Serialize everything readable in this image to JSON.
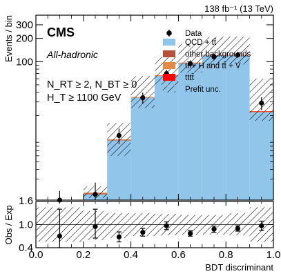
{
  "header": {
    "lumi": "138 fb⁻¹ (13 TeV)",
    "experiment": "CMS",
    "subtitle": "All-hadronic",
    "selection_line1": "N_RT ≥ 2, N_BT ≥ 0",
    "selection_line2": "H_T ≥ 1100 GeV"
  },
  "legend": {
    "data": "Data",
    "qcd": "QCD + tt̄",
    "other": "other backgrounds",
    "ttx": "tt̄ + H and tt̄ + V",
    "tttt": "tttt̄",
    "unc": "Prefit unc."
  },
  "colors": {
    "qcd": "#92c5ea",
    "other": "#b4523a",
    "ttx": "#e08b4a",
    "tttt": "#ff0000",
    "data": "#000000",
    "hatch": "#000000"
  },
  "chart_data": [
    {
      "type": "bar",
      "panel": "main",
      "stacked": true,
      "log_scale": true,
      "ylabel": "Events / bin",
      "ylim": [
        1.6,
        400
      ],
      "yticks": [
        100,
        200,
        300
      ],
      "ytick_labels": [
        "100",
        "200",
        "300"
      ],
      "ylim_label": "1.6",
      "bin_edges": [
        0.0,
        0.1,
        0.2,
        0.3,
        0.4,
        0.5,
        0.6,
        0.7,
        0.8,
        0.9,
        1.0
      ],
      "series": [
        {
          "name": "QCD + tt̄",
          "values": [
            0,
            0,
            1.9,
            9.5,
            34,
            65,
            95,
            120,
            120,
            22
          ]
        },
        {
          "name": "other backgrounds",
          "values": [
            0,
            0,
            0.05,
            0.1,
            0.2,
            0.3,
            0.4,
            0.4,
            0.4,
            0.15
          ]
        },
        {
          "name": "tt̄ + H and tt̄ + V",
          "values": [
            0,
            0,
            0.05,
            0.2,
            0.5,
            0.9,
            1.2,
            1.4,
            1.4,
            0.4
          ]
        },
        {
          "name": "tttt̄",
          "values": [
            0,
            0,
            0,
            0.02,
            0.08,
            0.2,
            0.35,
            0.5,
            0.6,
            0.25
          ]
        }
      ],
      "unc_band": {
        "low": [
          0,
          0,
          1.7,
          6,
          25,
          50,
          72,
          92,
          92,
          17
        ],
        "high": [
          0,
          0,
          2.4,
          16,
          65,
          115,
          170,
          210,
          210,
          60
        ]
      },
      "data": {
        "x": [
          0.1,
          0.25,
          0.35,
          0.45,
          0.55,
          0.65,
          0.75,
          0.85,
          0.95
        ],
        "y": [
          1.6,
          1.9,
          11,
          34,
          70,
          94,
          115,
          122,
          29
        ],
        "yerr_lo": [
          0.5,
          0.6,
          2.5,
          5.5,
          8.5,
          10,
          11,
          11,
          5.5
        ],
        "yerr_hi": [
          0.5,
          0.8,
          2.5,
          5.5,
          8.5,
          10,
          11,
          11,
          5.5
        ]
      }
    },
    {
      "type": "scatter",
      "panel": "ratio",
      "ylabel": "Obs / Exp",
      "xlabel": "BDT discriminant",
      "ylim": [
        0.4,
        1.6
      ],
      "yticks": [
        0.4,
        1.0,
        1.6
      ],
      "ytick_labels": [
        "0.4",
        "1.0",
        "1.6"
      ],
      "xlim": [
        0.0,
        1.0
      ],
      "xticks": [
        0.0,
        0.2,
        0.4,
        0.6,
        0.8,
        1.0
      ],
      "xtick_labels": [
        "0.0",
        "0.2",
        "0.4",
        "0.6",
        "0.8",
        "1.0"
      ],
      "x": [
        0.1,
        0.25,
        0.35,
        0.45,
        0.55,
        0.65,
        0.75,
        0.85,
        0.95
      ],
      "y": [
        0.7,
        0.95,
        0.68,
        0.8,
        0.97,
        0.77,
        0.88,
        0.9,
        0.97
      ],
      "yerr_lo": [
        0.4,
        0.3,
        0.13,
        0.1,
        0.1,
        0.07,
        0.08,
        0.07,
        0.12
      ],
      "yerr_hi": [
        0.7,
        0.45,
        0.13,
        0.1,
        0.1,
        0.07,
        0.08,
        0.07,
        0.12
      ],
      "unc_band": {
        "low": [
          0.55,
          0.55,
          0.6,
          0.65,
          0.7,
          0.72,
          0.74,
          0.74,
          0.72,
          0.55
        ],
        "high": [
          1.45,
          1.45,
          1.35,
          1.3,
          1.3,
          1.28,
          1.25,
          1.25,
          1.3,
          1.45
        ]
      }
    }
  ]
}
